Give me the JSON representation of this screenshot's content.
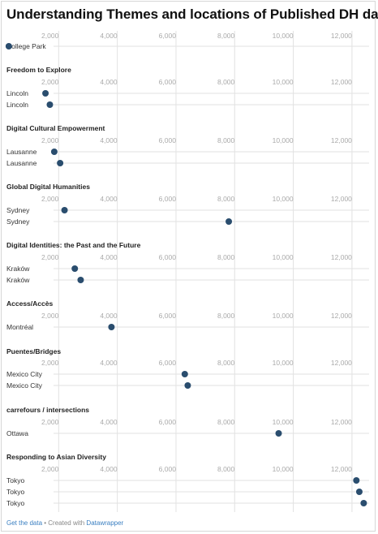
{
  "title": "Understanding Themes and locations of Published DH data]",
  "footer": {
    "get_data": "Get the data",
    "separator": " • Created with ",
    "created_with": "Datawrapper"
  },
  "colors": {
    "dot": "#2a4d6e",
    "grid": "#e2e2e2",
    "tick": "#aaaaaa"
  },
  "chart_data": {
    "type": "scatter",
    "xlim": [
      0,
      12500
    ],
    "ticks": [
      2000,
      4000,
      6000,
      8000,
      10000,
      12000
    ],
    "tick_labels": [
      "2,000",
      "4,000",
      "6,000",
      "8,000",
      "10,000",
      "12,000"
    ],
    "groups": [
      {
        "name": "",
        "rows": [
          {
            "label": "College Park",
            "value": 300
          }
        ]
      },
      {
        "name": "Freedom to Explore",
        "rows": [
          {
            "label": "Lincoln",
            "value": 1550
          },
          {
            "label": "Lincoln",
            "value": 1700
          }
        ]
      },
      {
        "name": "Digital Cultural Empowerment",
        "rows": [
          {
            "label": "Lausanne",
            "value": 1850
          },
          {
            "label": "Lausanne",
            "value": 2050
          }
        ]
      },
      {
        "name": "Global Digital Humanities",
        "rows": [
          {
            "label": "Sydney",
            "value": 2200
          },
          {
            "label": "Sydney",
            "value": 7800
          }
        ]
      },
      {
        "name": "Digital Identities: the Past and the Future",
        "rows": [
          {
            "label": "Kraków",
            "value": 2550
          },
          {
            "label": "Kraków",
            "value": 2750
          }
        ]
      },
      {
        "name": "Access/Accès",
        "rows": [
          {
            "label": "Montréal",
            "value": 3800
          }
        ]
      },
      {
        "name": "Puentes/Bridges",
        "rows": [
          {
            "label": "Mexico City",
            "value": 6300
          },
          {
            "label": "Mexico City",
            "value": 6400
          }
        ]
      },
      {
        "name": "carrefours / intersections",
        "rows": [
          {
            "label": "Ottawa",
            "value": 9500
          }
        ]
      },
      {
        "name": "Responding to Asian Diversity",
        "rows": [
          {
            "label": "Tokyo",
            "value": 12150
          },
          {
            "label": "Tokyo",
            "value": 12250
          },
          {
            "label": "Tokyo",
            "value": 12400
          }
        ]
      }
    ]
  }
}
